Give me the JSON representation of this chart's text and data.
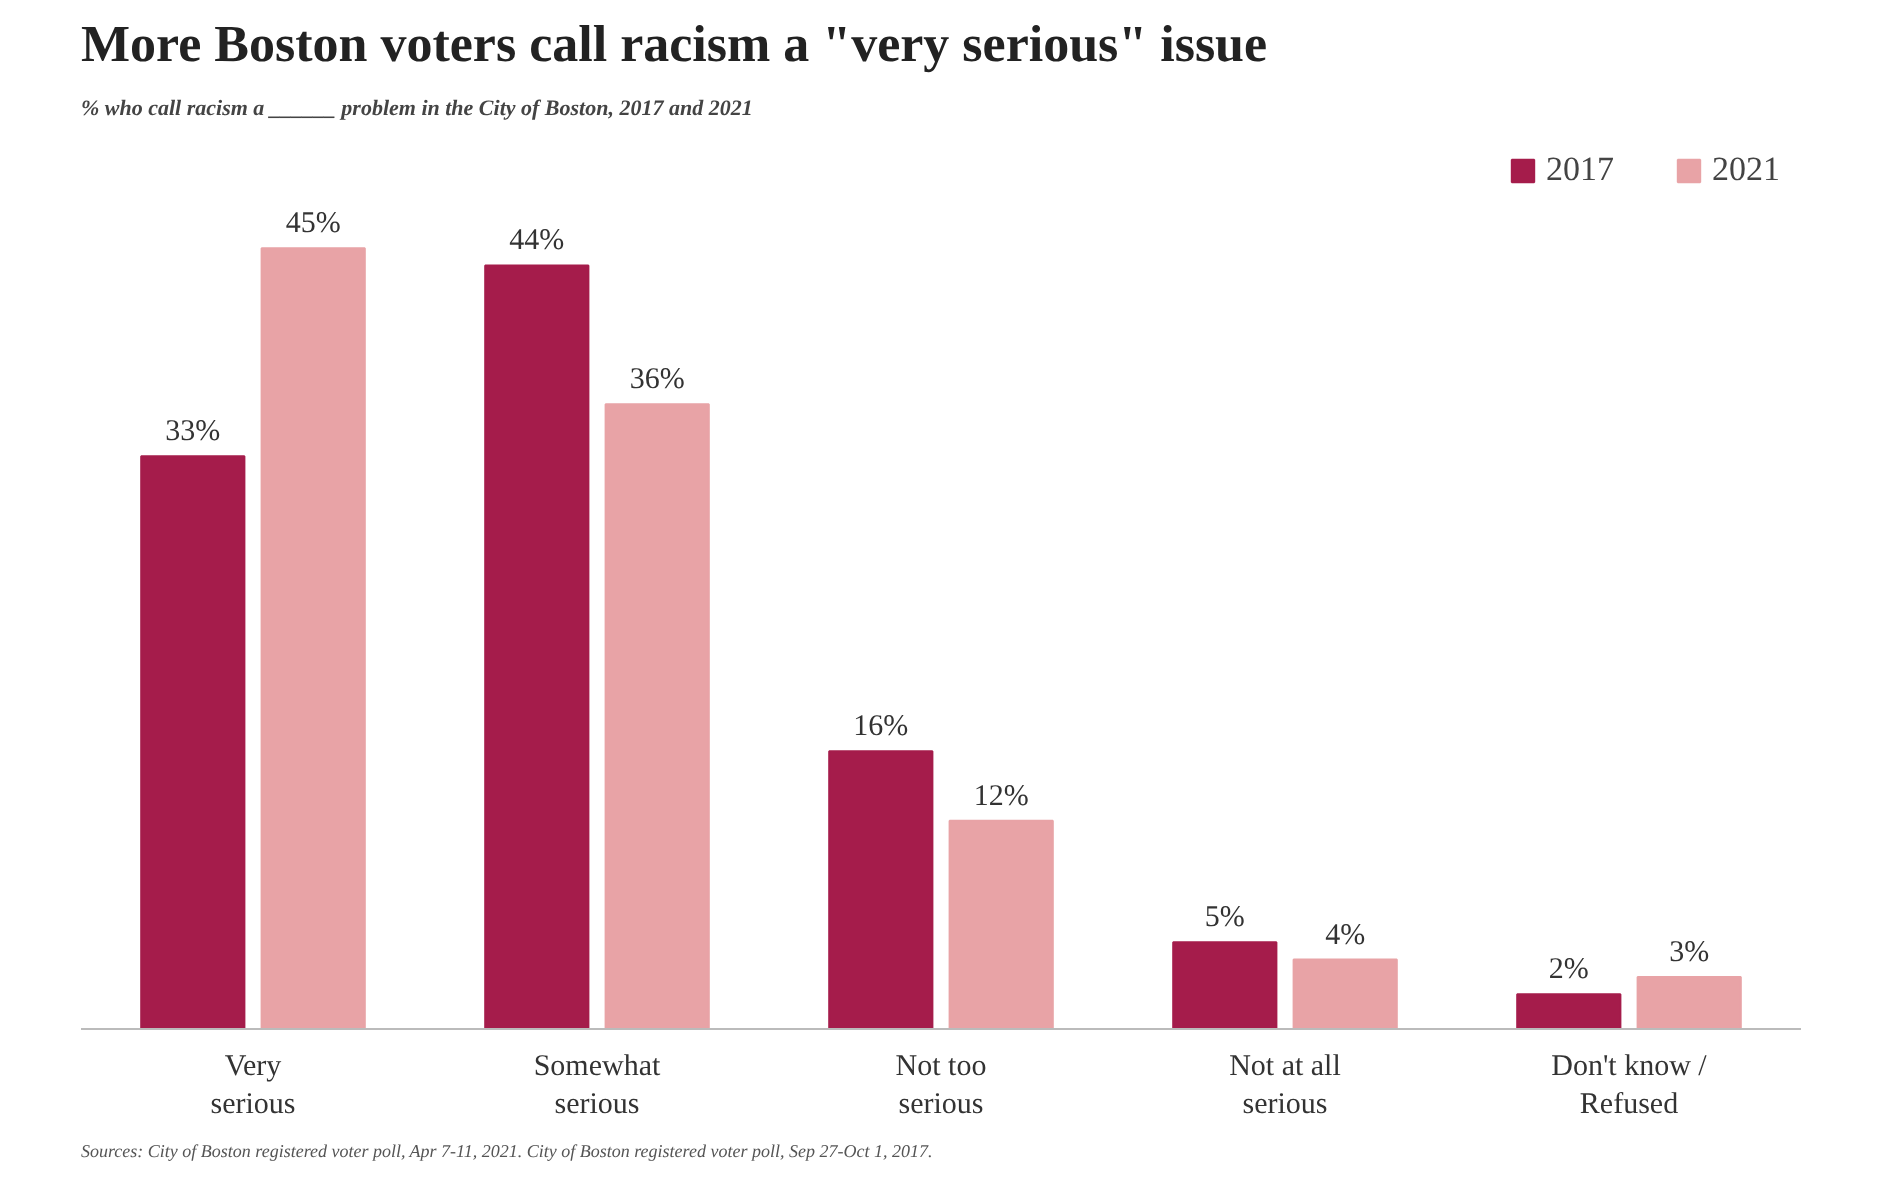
{
  "chart_data": {
    "type": "bar",
    "title": "More Boston voters call racism a \"very serious\" issue",
    "subtitle": "% who call racism a ______ problem in the City of Boston, 2017 and 2021",
    "categories": [
      "Very serious",
      "Somewhat serious",
      "Not too serious",
      "Not at all serious",
      "Don't know / Refused"
    ],
    "series": [
      {
        "name": "2017",
        "color": "#a51c4b",
        "values": [
          33,
          44,
          16,
          5,
          2
        ],
        "value_labels": [
          "33%",
          "44%",
          "16%",
          "5%",
          "2%"
        ]
      },
      {
        "name": "2021",
        "color": "#e8a3a6",
        "values": [
          45,
          36,
          12,
          4,
          3
        ],
        "value_labels": [
          "45%",
          "36%",
          "12%",
          "4%",
          "3%"
        ]
      }
    ],
    "legend": "top right",
    "grid": false,
    "annotations": [
      "Sources: City of Boston registered voter poll, Apr 7-11, 2021. City of Boston registered voter poll, Sep 27-Oct 1, 2017."
    ]
  }
}
